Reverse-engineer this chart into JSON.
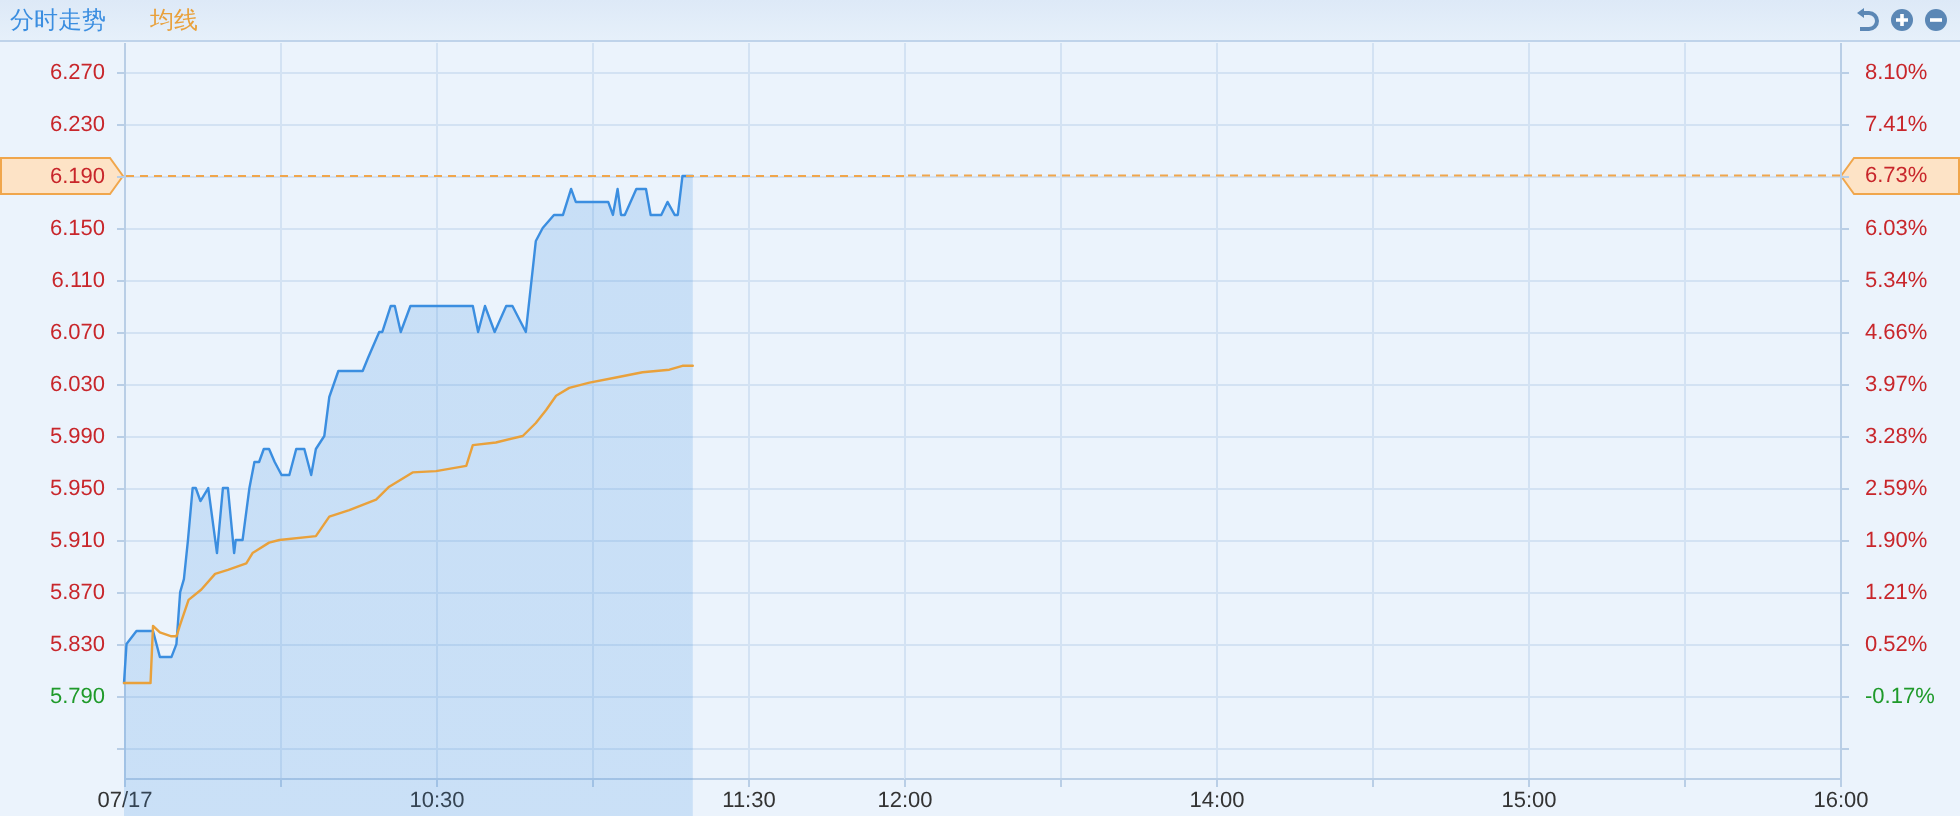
{
  "chart_data": [
    {
      "type": "area",
      "legend": "top left",
      "grid": true,
      "xlim": [
        9.5,
        12
      ],
      "xticks": [
        {
          "value": 9.5,
          "label": "07/17"
        },
        {
          "value": 10,
          "label": null
        },
        {
          "value": 10.5,
          "label": "10:30"
        },
        {
          "value": 11,
          "label": null
        },
        {
          "value": 11.5,
          "label": "11:30"
        },
        {
          "value": 12,
          "label": "12:00"
        }
      ],
      "ylim": [
        5.727,
        6.293
      ],
      "yticks": [
        {
          "value": 5.75,
          "label": null
        },
        {
          "value": 5.79,
          "label": "5.790"
        },
        {
          "value": 5.83,
          "label": "5.830"
        },
        {
          "value": 5.87,
          "label": "5.870"
        },
        {
          "value": 5.91,
          "label": "5.910"
        },
        {
          "value": 5.95,
          "label": "5.950"
        },
        {
          "value": 5.99,
          "label": "5.990"
        },
        {
          "value": 6.03,
          "label": "6.030"
        },
        {
          "value": 6.07,
          "label": "6.070"
        },
        {
          "value": 6.11,
          "label": "6.110"
        },
        {
          "value": 6.15,
          "label": "6.150"
        },
        {
          "value": 6.19,
          "label": "6.190"
        },
        {
          "value": 6.23,
          "label": "6.230"
        },
        {
          "value": 6.27,
          "label": "6.270"
        }
      ],
      "x": [
        9.5,
        9.508,
        9.54,
        9.593,
        9.615,
        9.652,
        9.668,
        9.68,
        9.692,
        9.705,
        9.72,
        9.73,
        9.745,
        9.77,
        9.798,
        9.817,
        9.833,
        9.853,
        9.858,
        9.88,
        9.902,
        9.918,
        9.933,
        9.948,
        9.965,
        9.983,
        10.005,
        10.03,
        10.052,
        10.078,
        10.1,
        10.115,
        10.142,
        10.158,
        10.187,
        10.265,
        10.282,
        10.318,
        10.328,
        10.355,
        10.368,
        10.387,
        10.418,
        10.618,
        10.635,
        10.657,
        10.688,
        10.725,
        10.745,
        10.788,
        10.82,
        10.842,
        10.878,
        10.907,
        10.933,
        10.948,
        11.052,
        11.067,
        11.082,
        11.093,
        11.105,
        11.142,
        11.173,
        11.188,
        11.222,
        11.242,
        11.265,
        11.275,
        11.29,
        11.323
      ],
      "series": [
        {
          "name": "分时走势",
          "type": "area",
          "color": "#3b8ee0",
          "values": [
            5.8,
            5.83,
            5.84,
            5.84,
            5.82,
            5.82,
            5.83,
            5.87,
            5.88,
            5.91,
            5.95,
            5.95,
            5.94,
            5.95,
            5.9,
            5.95,
            5.95,
            5.9,
            5.91,
            5.91,
            5.95,
            5.97,
            5.97,
            5.98,
            5.98,
            5.97,
            5.96,
            5.96,
            5.98,
            5.98,
            5.96,
            5.98,
            5.99,
            6.02,
            6.04,
            6.04,
            6.05,
            6.07,
            6.07,
            6.09,
            6.09,
            6.07,
            6.09,
            6.09,
            6.07,
            6.09,
            6.07,
            6.09,
            6.09,
            6.07,
            6.14,
            6.15,
            6.16,
            6.16,
            6.18,
            6.17,
            6.17,
            6.16,
            6.18,
            6.16,
            6.16,
            6.18,
            6.18,
            6.16,
            6.16,
            6.17,
            6.16,
            6.16,
            6.19,
            6.19
          ]
        },
        {
          "name": "均线",
          "type": "line",
          "color": "#e9a13b",
          "x": [
            9.5,
            9.585,
            9.593,
            9.615,
            9.652,
            9.668,
            9.68,
            9.707,
            9.748,
            9.792,
            9.833,
            9.892,
            9.912,
            9.965,
            9.998,
            10.115,
            10.158,
            10.222,
            10.308,
            10.35,
            10.425,
            10.5,
            10.597,
            10.618,
            10.692,
            10.778,
            10.82,
            10.853,
            10.885,
            10.927,
            10.992,
            11.077,
            11.162,
            11.248,
            11.29,
            11.323
          ],
          "values": [
            5.8,
            5.8,
            5.844,
            5.839,
            5.836,
            5.836,
            5.845,
            5.864,
            5.872,
            5.884,
            5.887,
            5.892,
            5.9,
            5.908,
            5.91,
            5.913,
            5.928,
            5.933,
            5.941,
            5.951,
            5.962,
            5.963,
            5.967,
            5.983,
            5.985,
            5.99,
            6.0,
            6.01,
            6.021,
            6.027,
            6.031,
            6.035,
            6.039,
            6.041,
            6.044,
            6.044
          ]
        }
      ],
      "ref_lines": [
        {
          "axis": "y",
          "value": 6.19,
          "color": "#f0a64c",
          "line_style": "dashed"
        }
      ]
    },
    {
      "type": "area",
      "grid": true,
      "xlim": [
        13,
        16
      ],
      "xticks": [
        {
          "value": 13,
          "label": null
        },
        {
          "value": 13.5,
          "label": null
        },
        {
          "value": 14,
          "label": "14:00"
        },
        {
          "value": 14.5,
          "label": null
        },
        {
          "value": 15,
          "label": "15:00"
        },
        {
          "value": 15.5,
          "label": null
        },
        {
          "value": 16,
          "label": "16:00"
        }
      ],
      "y2lim": [
        -1.26,
        8.5
      ],
      "y2ticks": [
        {
          "value": -0.86,
          "label": null
        },
        {
          "value": -0.17,
          "label": "-0.17%"
        },
        {
          "value": 0.52,
          "label": "0.52%"
        },
        {
          "value": 1.21,
          "label": "1.21%"
        },
        {
          "value": 1.9,
          "label": "1.90%"
        },
        {
          "value": 2.59,
          "label": "2.59%"
        },
        {
          "value": 3.28,
          "label": "3.28%"
        },
        {
          "value": 3.97,
          "label": "3.97%"
        },
        {
          "value": 4.66,
          "label": "4.66%"
        },
        {
          "value": 5.34,
          "label": "5.34%"
        },
        {
          "value": 6.03,
          "label": "6.03%"
        },
        {
          "value": 6.73,
          "label": "6.73%"
        },
        {
          "value": 7.41,
          "label": "7.41%"
        },
        {
          "value": 8.1,
          "label": "8.10%"
        }
      ],
      "ref_lines": [
        {
          "axis": "y2",
          "value": 6.73,
          "color": "#f0a64c",
          "line_style": "dashed"
        }
      ]
    }
  ]
}
